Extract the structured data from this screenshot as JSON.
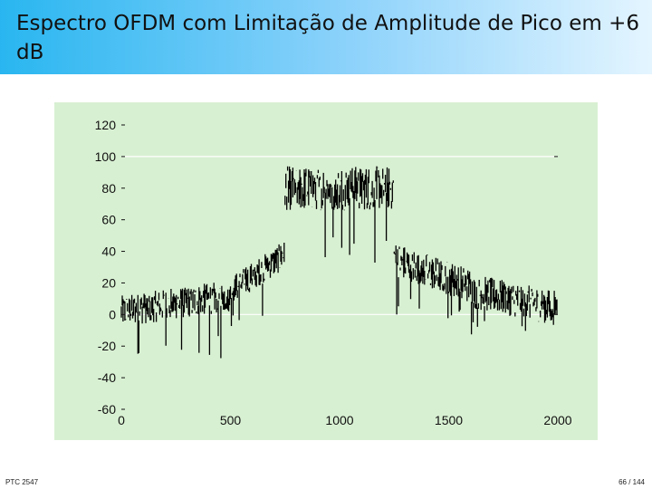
{
  "slide": {
    "title": "Espectro OFDM com Limitação de Amplitude de Pico em +6 dB",
    "footer_left": "PTC 2547",
    "footer_right": "66 / 144"
  },
  "colors": {
    "title_gradient_start": "#29b6f0",
    "title_gradient_end": "#e4f5ff",
    "chart_background": "#d8f0d2",
    "series_color": "#000000"
  },
  "chart_data": {
    "type": "line",
    "title": "",
    "xlabel": "",
    "ylabel": "",
    "xlim": [
      0,
      2000
    ],
    "ylim": [
      -60,
      120
    ],
    "x_ticks": [
      0,
      500,
      1000,
      1500,
      2000
    ],
    "y_ticks": [
      120,
      100,
      80,
      60,
      40,
      20,
      0,
      -20,
      -40,
      -60
    ],
    "reference_lines": [
      100,
      0
    ],
    "grid": false,
    "series": [
      {
        "segments": [
          {
            "x_start": 0,
            "x_end": 500,
            "level_start": 2,
            "level_end": 12,
            "spread": 10,
            "spike_min": -28
          },
          {
            "x_start": 500,
            "x_end": 750,
            "level_start": 15,
            "level_end": 38,
            "spread": 9,
            "spike_min": -10
          },
          {
            "x_start": 750,
            "x_end": 1250,
            "level_start": 80,
            "level_end": 80,
            "spread": 14,
            "spike_min": 32
          },
          {
            "x_start": 1250,
            "x_end": 1600,
            "level_start": 35,
            "level_end": 18,
            "spread": 11,
            "spike_min": -3
          },
          {
            "x_start": 1600,
            "x_end": 2000,
            "level_start": 15,
            "level_end": 4,
            "spread": 11,
            "spike_min": -13
          }
        ]
      }
    ]
  }
}
